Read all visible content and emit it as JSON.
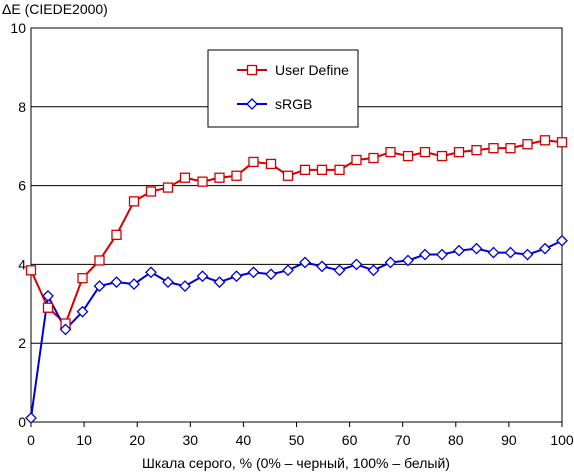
{
  "chart_data": {
    "type": "line",
    "title": "",
    "ylabel": "ΔE (CIEDE2000)",
    "xlabel": "Шкала серого, % (0% – черный, 100% – белый)",
    "xlim": [
      0,
      100
    ],
    "ylim": [
      0,
      10
    ],
    "x_ticks": [
      0,
      10,
      20,
      30,
      40,
      50,
      60,
      70,
      80,
      90,
      100
    ],
    "y_ticks": [
      0,
      2,
      4,
      6,
      8,
      10
    ],
    "grid": "horizontal",
    "legend_position": "top-center",
    "series": [
      {
        "name": "User Define",
        "color": "#d40000",
        "marker": "square",
        "x": [
          0,
          3.2,
          6.5,
          9.7,
          12.9,
          16.1,
          19.4,
          22.6,
          25.8,
          29.0,
          32.3,
          35.5,
          38.7,
          41.9,
          45.2,
          48.4,
          51.6,
          54.8,
          58.1,
          61.3,
          64.5,
          67.7,
          71.0,
          74.2,
          77.4,
          80.6,
          83.9,
          87.1,
          90.3,
          93.5,
          96.8,
          100
        ],
        "values": [
          3.85,
          2.9,
          2.5,
          3.65,
          4.1,
          4.75,
          5.6,
          5.85,
          5.95,
          6.2,
          6.1,
          6.2,
          6.25,
          6.6,
          6.55,
          6.25,
          6.4,
          6.4,
          6.4,
          6.65,
          6.7,
          6.85,
          6.75,
          6.85,
          6.75,
          6.85,
          6.9,
          6.95,
          6.95,
          7.05,
          7.15,
          7.1
        ]
      },
      {
        "name": "sRGB",
        "color": "#0000d4",
        "marker": "diamond",
        "x": [
          0,
          3.2,
          6.5,
          9.7,
          12.9,
          16.1,
          19.4,
          22.6,
          25.8,
          29.0,
          32.3,
          35.5,
          38.7,
          41.9,
          45.2,
          48.4,
          51.6,
          54.8,
          58.1,
          61.3,
          64.5,
          67.7,
          71.0,
          74.2,
          77.4,
          80.6,
          83.9,
          87.1,
          90.3,
          93.5,
          96.8,
          100
        ],
        "values": [
          0.1,
          3.2,
          2.35,
          2.8,
          3.45,
          3.55,
          3.5,
          3.8,
          3.55,
          3.45,
          3.7,
          3.55,
          3.7,
          3.8,
          3.75,
          3.85,
          4.05,
          3.95,
          3.85,
          4.0,
          3.85,
          4.05,
          4.1,
          4.25,
          4.25,
          4.35,
          4.4,
          4.3,
          4.3,
          4.25,
          4.4,
          4.6
        ]
      }
    ]
  }
}
